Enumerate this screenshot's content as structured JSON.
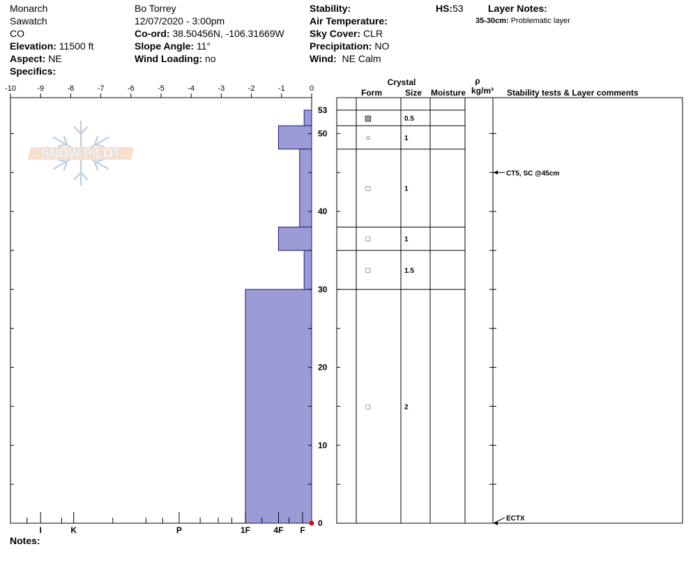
{
  "header": {
    "col1": [
      "Monarch",
      "Sawatch",
      "CO"
    ],
    "elevation_label": "Elevation:",
    "elevation_value": "11500 ft",
    "aspect_label": "Aspect:",
    "aspect_value": "NE",
    "specifics_label": "Specifics:",
    "observer": "Bo Torrey",
    "datetime": "12/07/2020 - 3:00pm",
    "coord_label": "Co-ord:",
    "coord_value": "38.50456N, -106.31669W",
    "slope_label": "Slope Angle:",
    "slope_value": "11°",
    "wind_loading_label": "Wind Loading:",
    "wind_loading_value": "no",
    "stability_label": "Stability:",
    "air_temp_label": "Air Temperature:",
    "sky_label": "Sky Cover:",
    "sky_value": "CLR",
    "precip_label": "Precipitation:",
    "precip_value": "NO",
    "wind_label": "Wind:",
    "wind_value": "NE Calm",
    "hs_label": "HS:",
    "hs_value": "53",
    "layer_notes_label": "Layer Notes:",
    "layer_note_range": "35-30cm:",
    "layer_note_text": "Problematic layer",
    "notes_label": "Notes:"
  },
  "logo_text": "SNOW PILOT",
  "table_headers": {
    "crystal": "Crystal",
    "form": "Form",
    "size": "Size",
    "moisture": "Moisture",
    "rho": "ρ",
    "density_unit": "kg/m³",
    "comments": "Stability tests & Layer comments"
  },
  "chart_data": {
    "type": "area",
    "description_axes": "hardness profile vs snow height",
    "x_ticks": [
      "-10",
      "-9",
      "-8",
      "-7",
      "-6",
      "-5",
      "-4",
      "-3",
      "-2",
      "-1",
      "0"
    ],
    "hardness_ticks": [
      "I",
      "K",
      "P",
      "1F",
      "4F",
      "F"
    ],
    "y_ticks": [
      "0",
      "10",
      "20",
      "30",
      "40",
      "50",
      "53"
    ],
    "xlim": [
      -10,
      0
    ],
    "ylim": [
      0,
      53
    ],
    "fill_color": "#9b9bd5",
    "layers": [
      {
        "top": 53,
        "bottom": 51,
        "hardness": -0.25,
        "form": "▨",
        "size": "0.5"
      },
      {
        "top": 51,
        "bottom": 48,
        "hardness": -1.1,
        "form": "○",
        "size": "1"
      },
      {
        "top": 48,
        "bottom": 38,
        "hardness": -0.4,
        "form": "□",
        "size": "1"
      },
      {
        "top": 38,
        "bottom": 35,
        "hardness": -1.1,
        "form": "□",
        "size": "1"
      },
      {
        "top": 35,
        "bottom": 30,
        "hardness": -0.25,
        "form": "□",
        "size": "1.5"
      },
      {
        "top": 30,
        "bottom": 0,
        "hardness": -2.2,
        "form": "□",
        "size": "2"
      }
    ],
    "tests": [
      {
        "depth": 45,
        "label": "CT5, SC @45cm"
      },
      {
        "depth": 0,
        "label": "ECTX"
      }
    ]
  }
}
